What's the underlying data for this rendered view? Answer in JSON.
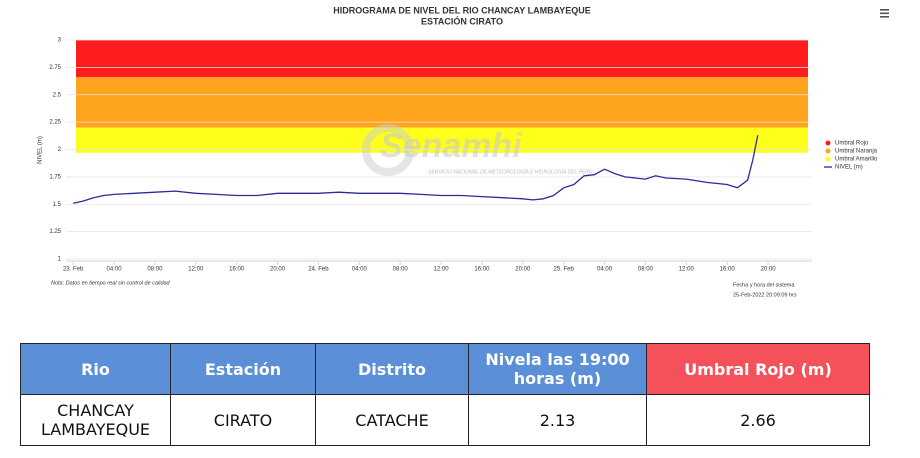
{
  "chart_data": {
    "type": "line",
    "title": "HIDROGRAMA DE NIVEL DEL RIO CHANCAY LAMBAYEQUE",
    "subtitle": "ESTACIÓN CIRATO",
    "y_label": "NIVEL (m)",
    "watermark": "Senamhi",
    "watermark_caption": "SERVICIO NACIONAL DE METEOROLOGÍA E HIDROLOGÍA DEL PERÚ",
    "note": "Nota: Datos en tiempo real sin control de calidad",
    "system_time_label": "Fecha y hora del sistema",
    "system_time": "25-Feb-2022 20:09:09 hrs",
    "ylim": [
      1,
      3
    ],
    "yticks": [
      1,
      1.25,
      1.5,
      1.75,
      2,
      2.25,
      2.5,
      2.75,
      3
    ],
    "xlim": [
      -0.7,
      72.3
    ],
    "xticks": [
      {
        "value": 0,
        "label": "23. Feb"
      },
      {
        "value": 4,
        "label": "04:00"
      },
      {
        "value": 8,
        "label": "08:00"
      },
      {
        "value": 12,
        "label": "12:00"
      },
      {
        "value": 16,
        "label": "16:00"
      },
      {
        "value": 20,
        "label": "20:00"
      },
      {
        "value": 24,
        "label": "24. Feb"
      },
      {
        "value": 28,
        "label": "04:00"
      },
      {
        "value": 32,
        "label": "08:00"
      },
      {
        "value": 36,
        "label": "12:00"
      },
      {
        "value": 40,
        "label": "16:00"
      },
      {
        "value": 44,
        "label": "20:00"
      },
      {
        "value": 48,
        "label": "25. Feb"
      },
      {
        "value": 52,
        "label": "04:00"
      },
      {
        "value": 56,
        "label": "08:00"
      },
      {
        "value": 60,
        "label": "12:00"
      },
      {
        "value": 64,
        "label": "16:00"
      },
      {
        "value": 68,
        "label": "20:00"
      }
    ],
    "grid": true,
    "legend": "right",
    "thresholds": [
      {
        "name": "Umbral Rojo",
        "color": "#ff1c1c",
        "value": 2.66
      },
      {
        "name": "Umbral Naranja",
        "color": "#ffa41c",
        "value": 2.2
      },
      {
        "name": "Umbral Amarillo",
        "color": "#ffff1c",
        "value": 1.97
      }
    ],
    "series": [
      {
        "name": "NIVEL (m)",
        "color": "#2b2b9c",
        "x": [
          0,
          1,
          2,
          3,
          4,
          6,
          8,
          10,
          12,
          14,
          16,
          18,
          20,
          22,
          24,
          26,
          28,
          30,
          32,
          34,
          36,
          38,
          40,
          42,
          44,
          45,
          46,
          47,
          48,
          49,
          50,
          51,
          52,
          53,
          54,
          56,
          57,
          58,
          60,
          62,
          64,
          65,
          66,
          66.5,
          67
        ],
        "values": [
          1.51,
          1.53,
          1.56,
          1.58,
          1.59,
          1.6,
          1.61,
          1.62,
          1.6,
          1.59,
          1.58,
          1.58,
          1.6,
          1.6,
          1.6,
          1.61,
          1.6,
          1.6,
          1.6,
          1.59,
          1.58,
          1.58,
          1.57,
          1.56,
          1.55,
          1.54,
          1.55,
          1.58,
          1.65,
          1.68,
          1.76,
          1.77,
          1.82,
          1.78,
          1.75,
          1.73,
          1.76,
          1.74,
          1.73,
          1.7,
          1.68,
          1.65,
          1.72,
          1.9,
          2.13
        ]
      }
    ]
  },
  "table": {
    "header": [
      "Rio",
      "Estación",
      "Distrito",
      "Nivela las 19:00 horas (m)",
      "Umbral Rojo (m)"
    ],
    "rows": [
      [
        "CHANCAY LAMBAYEQUE",
        "CIRATO",
        "CATACHE",
        2.13,
        2.66
      ]
    ]
  }
}
